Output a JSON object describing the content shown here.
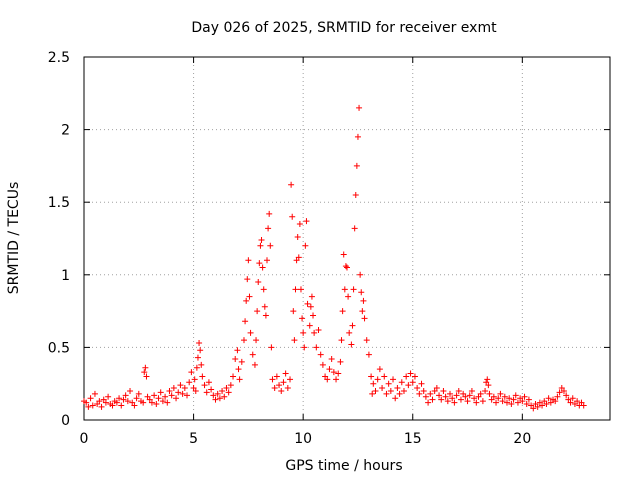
{
  "chart_data": {
    "type": "scatter",
    "title": "Day 026 of 2025, SRMTID for receiver exmt",
    "xlabel": "GPS time / hours",
    "ylabel": "SRMTID / TECUs",
    "xlim": [
      0,
      24
    ],
    "ylim": [
      0,
      2.5
    ],
    "xticks": [
      0,
      5,
      10,
      15,
      20
    ],
    "yticks": [
      0,
      0.5,
      1,
      1.5,
      2,
      2.5
    ],
    "xtick_labels": [
      "0",
      "5",
      "10",
      "15",
      "20"
    ],
    "ytick_labels": [
      "0",
      "0.5",
      "1",
      "1.5",
      "2",
      "2.5"
    ],
    "grid": true,
    "marker": "plus",
    "color": "#ff0000",
    "series": [
      {
        "name": "SRMTID",
        "points": [
          [
            0.0,
            0.13
          ],
          [
            0.1,
            0.12
          ],
          [
            0.2,
            0.09
          ],
          [
            0.3,
            0.15
          ],
          [
            0.4,
            0.1
          ],
          [
            0.5,
            0.18
          ],
          [
            0.6,
            0.11
          ],
          [
            0.7,
            0.13
          ],
          [
            0.8,
            0.09
          ],
          [
            0.9,
            0.14
          ],
          [
            1.0,
            0.12
          ],
          [
            1.1,
            0.16
          ],
          [
            1.2,
            0.11
          ],
          [
            1.3,
            0.1
          ],
          [
            1.4,
            0.13
          ],
          [
            1.5,
            0.12
          ],
          [
            1.6,
            0.15
          ],
          [
            1.7,
            0.1
          ],
          [
            1.8,
            0.14
          ],
          [
            1.9,
            0.17
          ],
          [
            2.0,
            0.13
          ],
          [
            2.1,
            0.2
          ],
          [
            2.2,
            0.12
          ],
          [
            2.3,
            0.1
          ],
          [
            2.4,
            0.15
          ],
          [
            2.5,
            0.18
          ],
          [
            2.6,
            0.13
          ],
          [
            2.7,
            0.12
          ],
          [
            2.75,
            0.33
          ],
          [
            2.8,
            0.36
          ],
          [
            2.85,
            0.3
          ],
          [
            2.9,
            0.16
          ],
          [
            3.0,
            0.14
          ],
          [
            3.1,
            0.12
          ],
          [
            3.2,
            0.17
          ],
          [
            3.3,
            0.11
          ],
          [
            3.4,
            0.15
          ],
          [
            3.5,
            0.19
          ],
          [
            3.6,
            0.13
          ],
          [
            3.7,
            0.16
          ],
          [
            3.8,
            0.12
          ],
          [
            3.9,
            0.2
          ],
          [
            4.0,
            0.17
          ],
          [
            4.1,
            0.22
          ],
          [
            4.2,
            0.15
          ],
          [
            4.3,
            0.19
          ],
          [
            4.4,
            0.24
          ],
          [
            4.5,
            0.18
          ],
          [
            4.6,
            0.22
          ],
          [
            4.7,
            0.17
          ],
          [
            4.8,
            0.26
          ],
          [
            4.9,
            0.33
          ],
          [
            5.0,
            0.22
          ],
          [
            5.05,
            0.28
          ],
          [
            5.1,
            0.2
          ],
          [
            5.15,
            0.36
          ],
          [
            5.2,
            0.43
          ],
          [
            5.25,
            0.53
          ],
          [
            5.3,
            0.48
          ],
          [
            5.35,
            0.38
          ],
          [
            5.4,
            0.3
          ],
          [
            5.5,
            0.24
          ],
          [
            5.6,
            0.19
          ],
          [
            5.7,
            0.26
          ],
          [
            5.8,
            0.21
          ],
          [
            5.9,
            0.17
          ],
          [
            6.0,
            0.14
          ],
          [
            6.1,
            0.18
          ],
          [
            6.2,
            0.15
          ],
          [
            6.3,
            0.2
          ],
          [
            6.4,
            0.16
          ],
          [
            6.5,
            0.22
          ],
          [
            6.6,
            0.19
          ],
          [
            6.7,
            0.24
          ],
          [
            6.8,
            0.3
          ],
          [
            6.9,
            0.42
          ],
          [
            7.0,
            0.48
          ],
          [
            7.05,
            0.35
          ],
          [
            7.1,
            0.28
          ],
          [
            7.2,
            0.4
          ],
          [
            7.3,
            0.55
          ],
          [
            7.35,
            0.68
          ],
          [
            7.4,
            0.82
          ],
          [
            7.45,
            0.97
          ],
          [
            7.5,
            1.1
          ],
          [
            7.55,
            0.85
          ],
          [
            7.6,
            0.6
          ],
          [
            7.7,
            0.45
          ],
          [
            7.8,
            0.38
          ],
          [
            7.85,
            0.55
          ],
          [
            7.9,
            0.75
          ],
          [
            7.95,
            0.95
          ],
          [
            8.0,
            1.08
          ],
          [
            8.05,
            1.2
          ],
          [
            8.1,
            1.24
          ],
          [
            8.15,
            1.05
          ],
          [
            8.2,
            0.9
          ],
          [
            8.25,
            0.78
          ],
          [
            8.3,
            0.72
          ],
          [
            8.35,
            1.1
          ],
          [
            8.4,
            1.32
          ],
          [
            8.45,
            1.42
          ],
          [
            8.5,
            1.2
          ],
          [
            8.55,
            0.5
          ],
          [
            8.6,
            0.28
          ],
          [
            8.7,
            0.22
          ],
          [
            8.8,
            0.3
          ],
          [
            8.9,
            0.24
          ],
          [
            9.0,
            0.2
          ],
          [
            9.1,
            0.26
          ],
          [
            9.2,
            0.32
          ],
          [
            9.3,
            0.22
          ],
          [
            9.4,
            0.28
          ],
          [
            9.45,
            1.62
          ],
          [
            9.5,
            1.4
          ],
          [
            9.55,
            0.75
          ],
          [
            9.6,
            0.55
          ],
          [
            9.65,
            0.9
          ],
          [
            9.7,
            1.1
          ],
          [
            9.75,
            1.26
          ],
          [
            9.8,
            1.12
          ],
          [
            9.85,
            1.35
          ],
          [
            9.9,
            0.9
          ],
          [
            9.95,
            0.7
          ],
          [
            10.0,
            0.6
          ],
          [
            10.05,
            0.5
          ],
          [
            10.1,
            1.2
          ],
          [
            10.15,
            1.37
          ],
          [
            10.2,
            0.8
          ],
          [
            10.3,
            0.65
          ],
          [
            10.35,
            0.78
          ],
          [
            10.4,
            0.85
          ],
          [
            10.45,
            0.72
          ],
          [
            10.5,
            0.6
          ],
          [
            10.6,
            0.5
          ],
          [
            10.7,
            0.62
          ],
          [
            10.8,
            0.45
          ],
          [
            10.9,
            0.38
          ],
          [
            11.0,
            0.3
          ],
          [
            11.1,
            0.28
          ],
          [
            11.2,
            0.35
          ],
          [
            11.3,
            0.42
          ],
          [
            11.4,
            0.33
          ],
          [
            11.5,
            0.28
          ],
          [
            11.6,
            0.32
          ],
          [
            11.7,
            0.4
          ],
          [
            11.75,
            0.55
          ],
          [
            11.8,
            0.75
          ],
          [
            11.85,
            1.14
          ],
          [
            11.9,
            0.9
          ],
          [
            11.95,
            1.06
          ],
          [
            12.0,
            1.05
          ],
          [
            12.05,
            0.85
          ],
          [
            12.1,
            0.6
          ],
          [
            12.2,
            0.52
          ],
          [
            12.25,
            0.65
          ],
          [
            12.3,
            0.9
          ],
          [
            12.35,
            1.32
          ],
          [
            12.4,
            1.55
          ],
          [
            12.45,
            1.75
          ],
          [
            12.5,
            1.95
          ],
          [
            12.55,
            2.15
          ],
          [
            12.6,
            1.0
          ],
          [
            12.65,
            0.88
          ],
          [
            12.7,
            0.75
          ],
          [
            12.75,
            0.82
          ],
          [
            12.8,
            0.7
          ],
          [
            12.9,
            0.55
          ],
          [
            13.0,
            0.45
          ],
          [
            13.1,
            0.3
          ],
          [
            13.15,
            0.18
          ],
          [
            13.2,
            0.25
          ],
          [
            13.3,
            0.2
          ],
          [
            13.4,
            0.28
          ],
          [
            13.5,
            0.35
          ],
          [
            13.6,
            0.22
          ],
          [
            13.7,
            0.3
          ],
          [
            13.8,
            0.18
          ],
          [
            13.9,
            0.25
          ],
          [
            14.0,
            0.2
          ],
          [
            14.1,
            0.28
          ],
          [
            14.2,
            0.15
          ],
          [
            14.3,
            0.22
          ],
          [
            14.4,
            0.18
          ],
          [
            14.5,
            0.26
          ],
          [
            14.6,
            0.2
          ],
          [
            14.7,
            0.3
          ],
          [
            14.8,
            0.24
          ],
          [
            14.9,
            0.32
          ],
          [
            15.0,
            0.26
          ],
          [
            15.1,
            0.3
          ],
          [
            15.2,
            0.22
          ],
          [
            15.3,
            0.18
          ],
          [
            15.4,
            0.25
          ],
          [
            15.5,
            0.2
          ],
          [
            15.6,
            0.16
          ],
          [
            15.7,
            0.12
          ],
          [
            15.8,
            0.18
          ],
          [
            15.9,
            0.14
          ],
          [
            16.0,
            0.2
          ],
          [
            16.1,
            0.22
          ],
          [
            16.2,
            0.17
          ],
          [
            16.3,
            0.14
          ],
          [
            16.4,
            0.2
          ],
          [
            16.5,
            0.16
          ],
          [
            16.6,
            0.13
          ],
          [
            16.7,
            0.18
          ],
          [
            16.8,
            0.15
          ],
          [
            16.9,
            0.12
          ],
          [
            17.0,
            0.17
          ],
          [
            17.1,
            0.2
          ],
          [
            17.2,
            0.14
          ],
          [
            17.3,
            0.18
          ],
          [
            17.4,
            0.16
          ],
          [
            17.5,
            0.13
          ],
          [
            17.6,
            0.17
          ],
          [
            17.7,
            0.2
          ],
          [
            17.8,
            0.15
          ],
          [
            17.9,
            0.12
          ],
          [
            18.0,
            0.16
          ],
          [
            18.1,
            0.18
          ],
          [
            18.2,
            0.13
          ],
          [
            18.3,
            0.2
          ],
          [
            18.35,
            0.26
          ],
          [
            18.4,
            0.28
          ],
          [
            18.45,
            0.24
          ],
          [
            18.5,
            0.18
          ],
          [
            18.6,
            0.14
          ],
          [
            18.7,
            0.16
          ],
          [
            18.8,
            0.12
          ],
          [
            18.9,
            0.15
          ],
          [
            19.0,
            0.18
          ],
          [
            19.1,
            0.13
          ],
          [
            19.2,
            0.16
          ],
          [
            19.3,
            0.12
          ],
          [
            19.4,
            0.15
          ],
          [
            19.5,
            0.11
          ],
          [
            19.6,
            0.14
          ],
          [
            19.7,
            0.17
          ],
          [
            19.8,
            0.12
          ],
          [
            19.9,
            0.15
          ],
          [
            20.0,
            0.13
          ],
          [
            20.1,
            0.16
          ],
          [
            20.2,
            0.11
          ],
          [
            20.3,
            0.14
          ],
          [
            20.4,
            0.1
          ],
          [
            20.5,
            0.08
          ],
          [
            20.6,
            0.11
          ],
          [
            20.7,
            0.09
          ],
          [
            20.8,
            0.12
          ],
          [
            20.9,
            0.1
          ],
          [
            21.0,
            0.13
          ],
          [
            21.1,
            0.11
          ],
          [
            21.2,
            0.15
          ],
          [
            21.3,
            0.12
          ],
          [
            21.4,
            0.14
          ],
          [
            21.5,
            0.13
          ],
          [
            21.6,
            0.16
          ],
          [
            21.7,
            0.19
          ],
          [
            21.8,
            0.22
          ],
          [
            21.9,
            0.2
          ],
          [
            22.0,
            0.17
          ],
          [
            22.1,
            0.14
          ],
          [
            22.2,
            0.12
          ],
          [
            22.3,
            0.15
          ],
          [
            22.4,
            0.11
          ],
          [
            22.5,
            0.13
          ],
          [
            22.6,
            0.1
          ],
          [
            22.7,
            0.12
          ],
          [
            22.8,
            0.1
          ]
        ]
      }
    ]
  }
}
